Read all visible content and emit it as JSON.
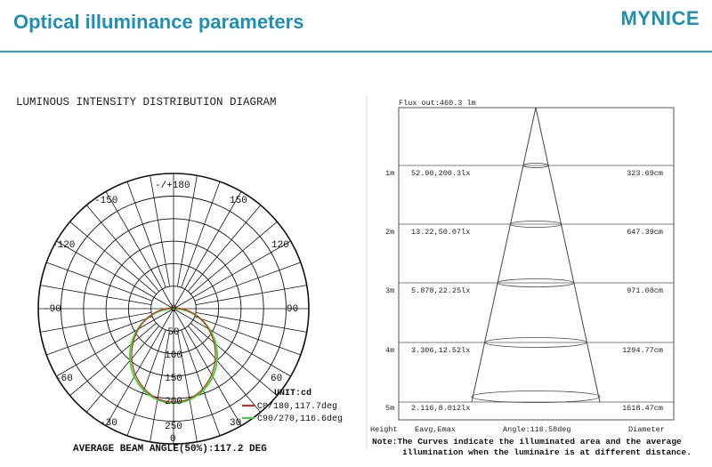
{
  "header": {
    "title": "Optical illuminance parameters",
    "brand": "MYNICE"
  },
  "polar": {
    "title": "LUMINOUS INTENSITY DISTRIBUTION DIAGRAM",
    "angle_labels": [
      "-/+180",
      "-150",
      "150",
      "-120",
      "120",
      "-90",
      "90",
      "-60",
      "60",
      "-30",
      "30",
      "0"
    ],
    "radial_labels": [
      "0",
      "50",
      "100",
      "150",
      "200",
      "250"
    ],
    "unit": "UNIT:cd",
    "legend": [
      {
        "label": "C0/180,117.7deg",
        "color": "#e02020"
      },
      {
        "label": "C90/270,116.6deg",
        "color": "#33dd33"
      }
    ],
    "beam_angle_text": "AVERAGE BEAM ANGLE(50%):117.2 DEG"
  },
  "cone": {
    "flux": "Flux out:460.3 lm",
    "rows": [
      {
        "height": "1m",
        "values": "52.90,200.3lx",
        "diameter": "323.69cm"
      },
      {
        "height": "2m",
        "values": "13.22,50.07lx",
        "diameter": "647.39cm"
      },
      {
        "height": "3m",
        "values": "5.878,22.25lx",
        "diameter": "971.08cm"
      },
      {
        "height": "4m",
        "values": "3.306,12.52lx",
        "diameter": "1294.77cm"
      },
      {
        "height": "5m",
        "values": "2.116,8.012lx",
        "diameter": "1618.47cm"
      }
    ],
    "footer": {
      "height": "Height",
      "eavg": "Eavg,Emax",
      "angle": "Angle:116.58deg",
      "diameter": "Diameter"
    },
    "note_line1": "Note:The Curves indicate the illuminated area and the average",
    "note_line2": "illumination when the luminaire is at different distance."
  }
}
